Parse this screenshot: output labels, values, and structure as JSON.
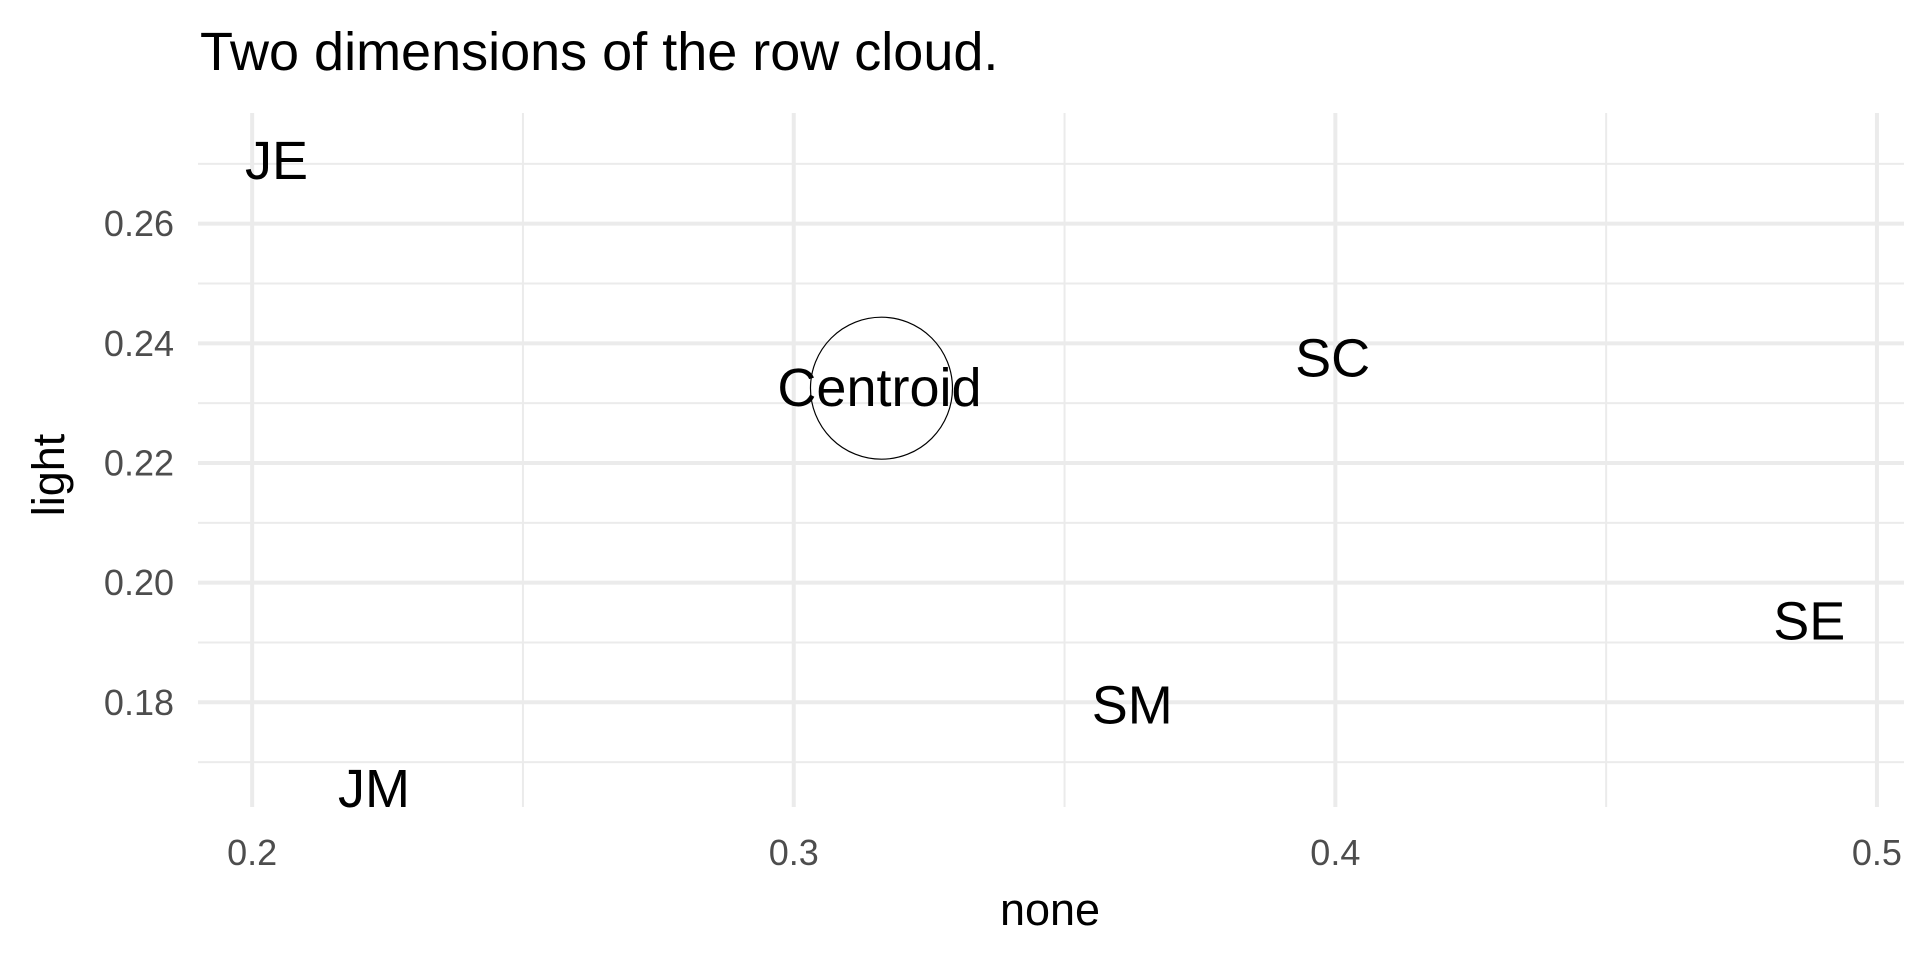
{
  "chart_data": {
    "type": "scatter",
    "title": "Two dimensions of the row cloud.",
    "xlabel": "none",
    "ylabel": "light",
    "xlim": [
      0.19,
      0.505
    ],
    "ylim": [
      0.1625,
      0.2785
    ],
    "x_major_ticks": [
      0.2,
      0.3,
      0.4,
      0.5
    ],
    "x_tick_labels": [
      "0.2",
      "0.3",
      "0.4",
      "0.5"
    ],
    "x_minor_ticks": [
      0.25,
      0.35,
      0.45
    ],
    "y_major_ticks": [
      0.18,
      0.2,
      0.22,
      0.24,
      0.26
    ],
    "y_tick_labels": [
      "0.18",
      "0.20",
      "0.22",
      "0.24",
      "0.26"
    ],
    "y_minor_ticks": [
      0.17,
      0.19,
      0.21,
      0.23,
      0.25,
      0.27
    ],
    "grid": true,
    "points": [
      {
        "label": "JE",
        "x": 0.2045,
        "y": 0.2705
      },
      {
        "label": "SC",
        "x": 0.3995,
        "y": 0.2375
      },
      {
        "label": "SE",
        "x": 0.4875,
        "y": 0.1935
      },
      {
        "label": "SM",
        "x": 0.3625,
        "y": 0.1795
      },
      {
        "label": "JM",
        "x": 0.2225,
        "y": 0.1655
      }
    ],
    "centroid": {
      "label": "Centroid",
      "x": 0.3162,
      "y": 0.2325
    }
  }
}
